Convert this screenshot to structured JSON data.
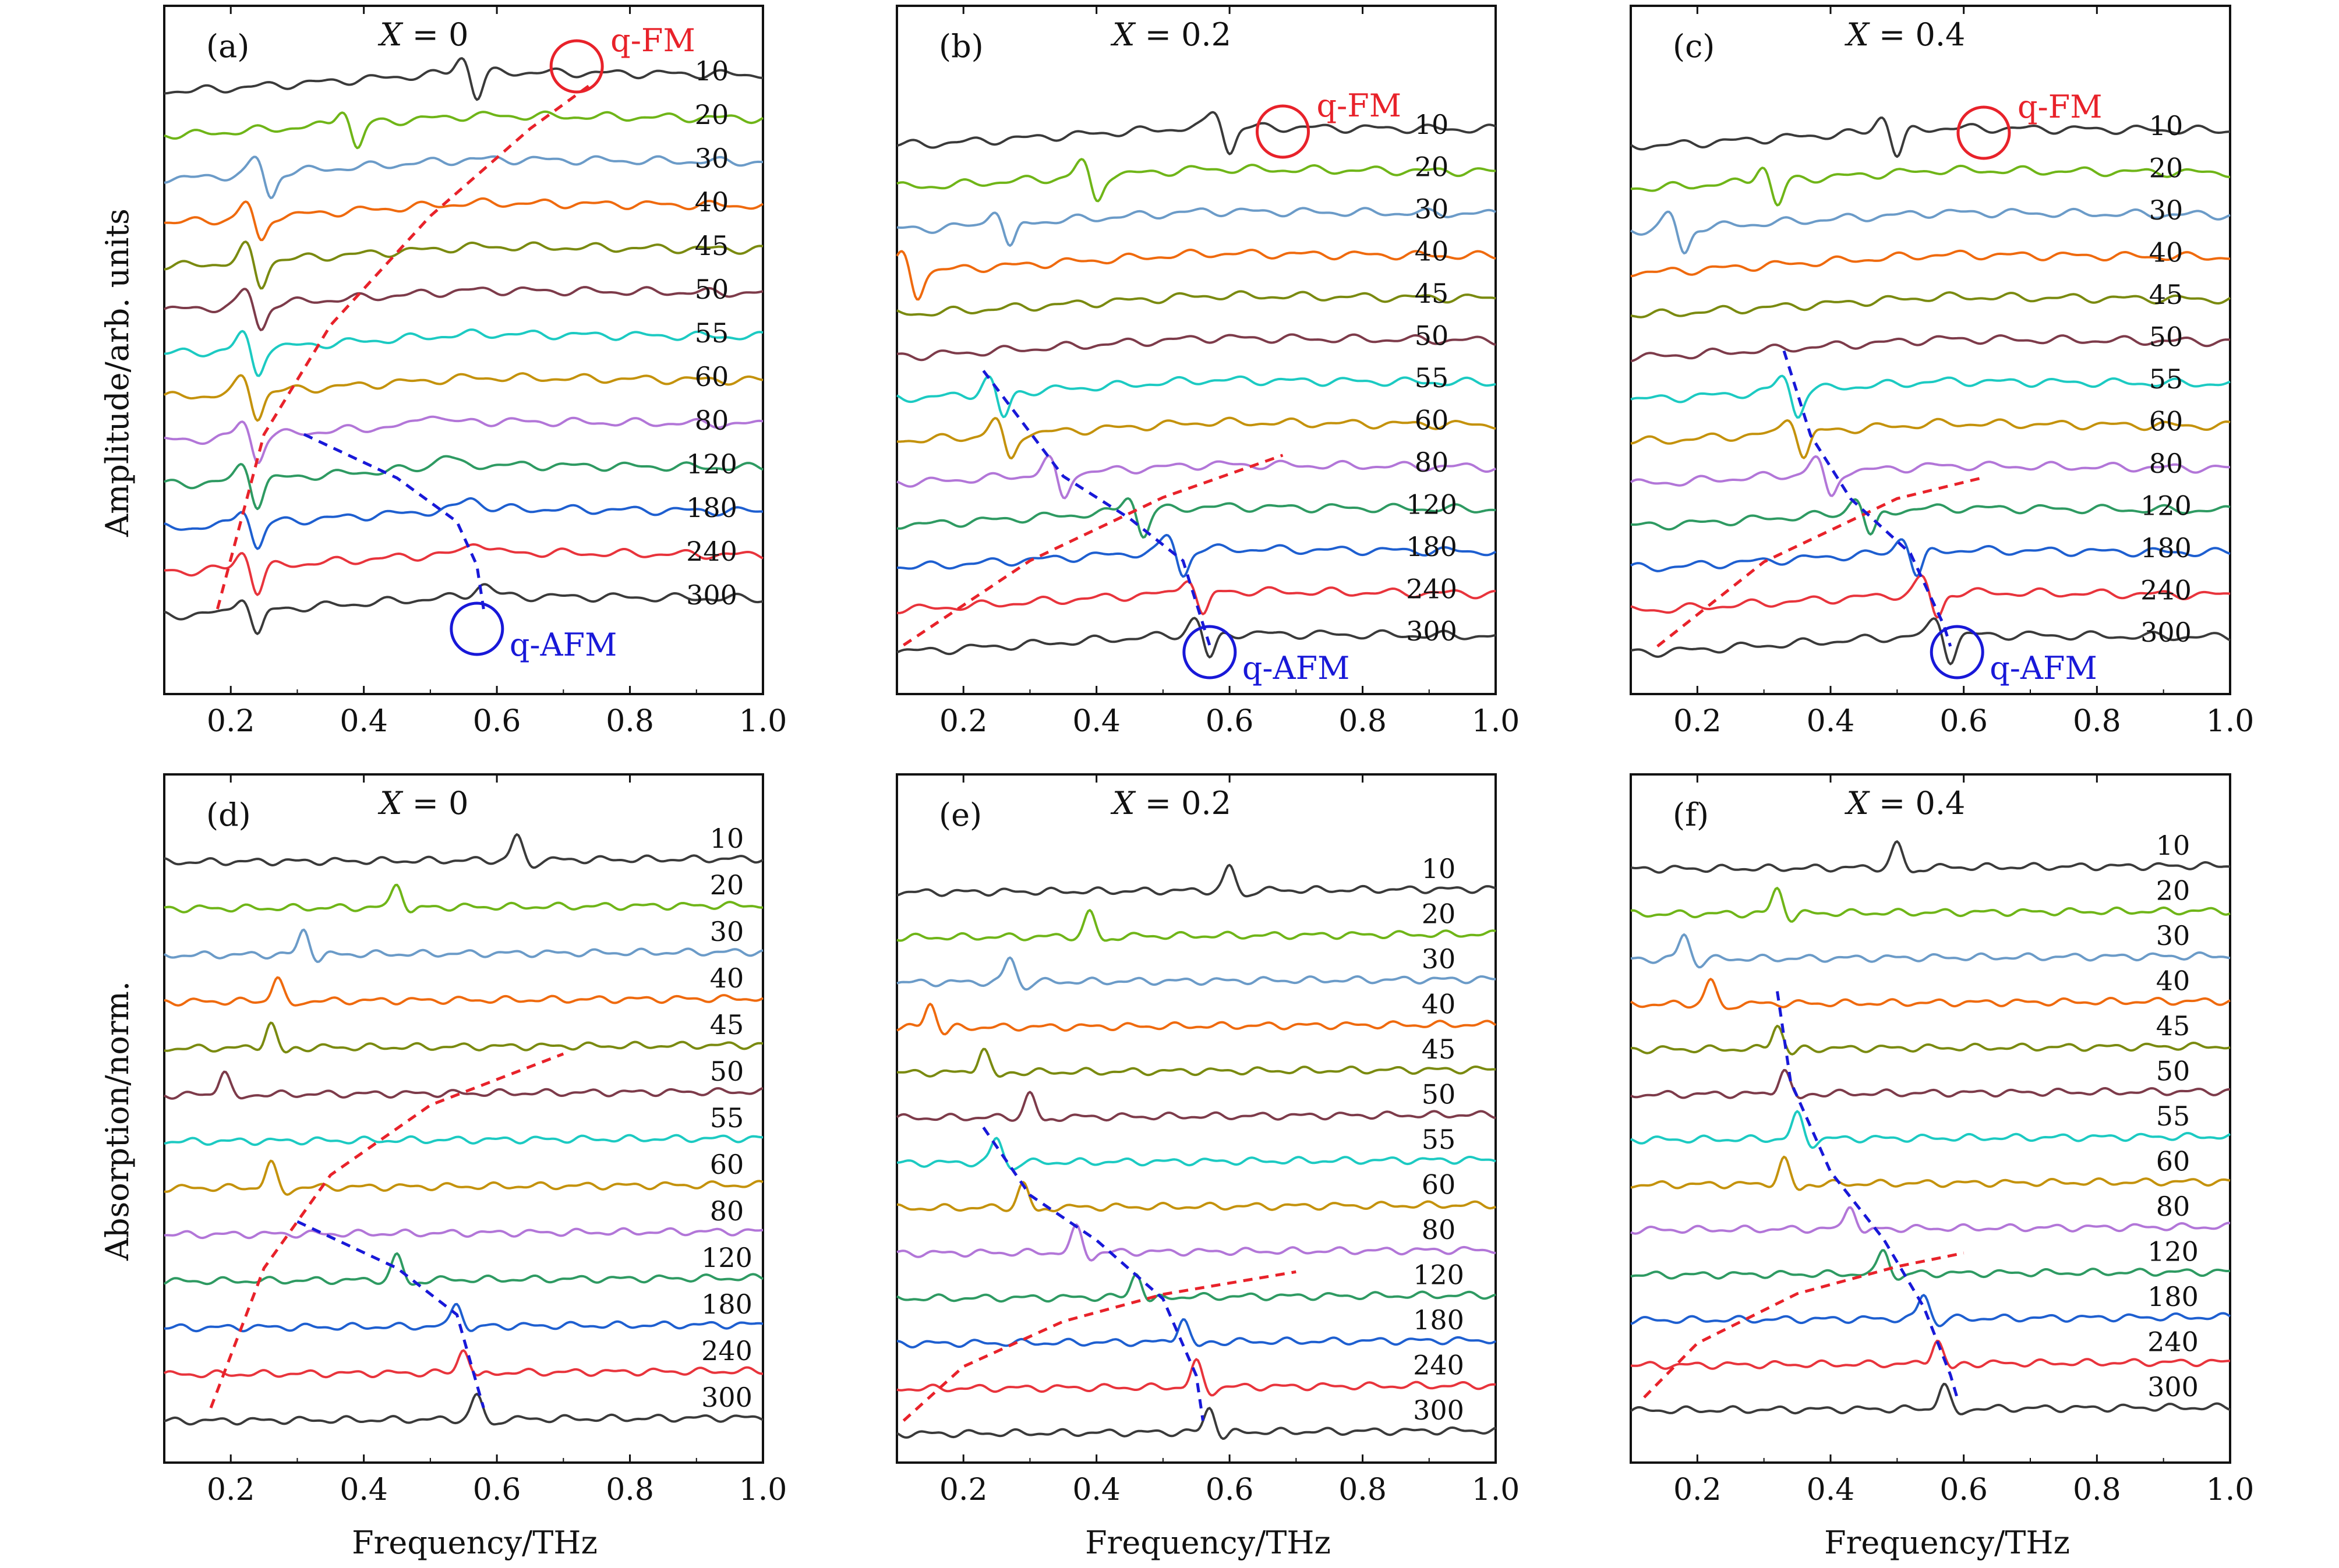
{
  "figure": {
    "ylabel_top": "Amplitude/arb. units",
    "ylabel_bottom": "Absorption/norm.",
    "xlabel": "Frequency/THz",
    "xticks": [
      0.2,
      0.4,
      0.6,
      0.8,
      1.0
    ],
    "xtick_labels": [
      "0.2",
      "0.4",
      "0.6",
      "0.8",
      "1.0"
    ],
    "xlim": [
      0.1,
      1.0
    ]
  },
  "chart_data": [
    {
      "panel": "(a)",
      "type": "line",
      "measurement": "amplitude",
      "x_label": "X = 0",
      "x_var": "X",
      "x_val": "0",
      "xlim": [
        0.1,
        1.0
      ],
      "xlabel": "",
      "ylabel": "Amplitude/arb. units",
      "temperatures": [
        "10",
        "20",
        "30",
        "40",
        "45",
        "50",
        "55",
        "60",
        "80",
        "120",
        "180",
        "240",
        "300"
      ],
      "dip_freq_thz": [
        0.57,
        0.39,
        0.26,
        0.245,
        0.245,
        0.245,
        0.24,
        0.24,
        0.24,
        0.24,
        0.24,
        0.24,
        0.24
      ],
      "afm_freq_thz": [
        null,
        null,
        null,
        null,
        null,
        null,
        null,
        null,
        0.5,
        0.52,
        0.56,
        0.57,
        0.58
      ],
      "fm_trend": {
        "label": "q-FM",
        "points": [
          [
            0.18,
            0
          ],
          [
            0.25,
            4
          ],
          [
            0.35,
            6.5
          ],
          [
            0.5,
            9
          ],
          [
            0.65,
            11
          ],
          [
            0.74,
            12
          ]
        ]
      },
      "afm_trend": {
        "label": "q-AFM",
        "points": [
          [
            0.31,
            4
          ],
          [
            0.45,
            3
          ],
          [
            0.54,
            2
          ],
          [
            0.57,
            1
          ],
          [
            0.58,
            0
          ]
        ]
      },
      "fm_circle": {
        "label": "q-FM",
        "x": 0.72
      },
      "afm_circle": {
        "label": "q-AFM",
        "x": 0.57
      }
    },
    {
      "panel": "(b)",
      "type": "line",
      "measurement": "amplitude",
      "x_label": "X = 0.2",
      "x_var": "X",
      "x_val": "0.2",
      "xlim": [
        0.1,
        1.0
      ],
      "xlabel": "",
      "ylabel": "",
      "temperatures": [
        "10",
        "20",
        "30",
        "40",
        "45",
        "50",
        "55",
        "60",
        "80",
        "120",
        "180",
        "240",
        "300"
      ],
      "dip_freq_thz": [
        0.6,
        0.4,
        0.27,
        0.13,
        null,
        null,
        0.26,
        0.27,
        0.35,
        0.47,
        0.53,
        0.56,
        0.57
      ],
      "fm_trend": {
        "label": "q-FM",
        "points": [
          [
            0.11,
            0
          ],
          [
            0.3,
            2
          ],
          [
            0.5,
            3.5
          ],
          [
            0.68,
            4.5
          ]
        ]
      },
      "afm_trend": {
        "label": "q-AFM",
        "points": [
          [
            0.23,
            6.5
          ],
          [
            0.35,
            4
          ],
          [
            0.45,
            3
          ],
          [
            0.53,
            2
          ],
          [
            0.57,
            0
          ]
        ]
      },
      "fm_circle": {
        "label": "q-FM",
        "x": 0.68
      },
      "afm_circle": {
        "label": "q-AFM",
        "x": 0.57
      }
    },
    {
      "panel": "(c)",
      "type": "line",
      "measurement": "amplitude",
      "x_label": "X = 0.4",
      "x_var": "X",
      "x_val": "0.4",
      "xlim": [
        0.1,
        1.0
      ],
      "xlabel": "",
      "ylabel": "",
      "temperatures": [
        "10",
        "20",
        "30",
        "40",
        "45",
        "50",
        "55",
        "60",
        "80",
        "120",
        "180",
        "240",
        "300"
      ],
      "dip_freq_thz": [
        0.5,
        0.32,
        0.18,
        null,
        null,
        null,
        0.35,
        0.36,
        0.4,
        0.46,
        0.53,
        0.56,
        0.58
      ],
      "fm_trend": {
        "label": "q-FM",
        "points": [
          [
            0.14,
            0
          ],
          [
            0.3,
            2
          ],
          [
            0.5,
            3.5
          ],
          [
            0.63,
            4
          ]
        ]
      },
      "afm_trend": {
        "label": "q-AFM",
        "points": [
          [
            0.33,
            7
          ],
          [
            0.37,
            5
          ],
          [
            0.43,
            3.5
          ],
          [
            0.52,
            2.2
          ],
          [
            0.57,
            0.5
          ],
          [
            0.58,
            0
          ]
        ]
      },
      "fm_circle": {
        "label": "q-FM",
        "x": 0.63
      },
      "afm_circle": {
        "label": "q-AFM",
        "x": 0.59
      }
    },
    {
      "panel": "(d)",
      "type": "line",
      "measurement": "absorption",
      "x_label": "X = 0",
      "x_var": "X",
      "x_val": "0",
      "xlim": [
        0.1,
        1.0
      ],
      "xlabel": "Frequency/THz",
      "ylabel": "Absorption/norm.",
      "temperatures": [
        "10",
        "20",
        "30",
        "40",
        "45",
        "50",
        "55",
        "60",
        "80",
        "120",
        "180",
        "240",
        "300"
      ],
      "peak_freq_thz": [
        0.63,
        0.45,
        0.31,
        0.27,
        0.26,
        0.19,
        null,
        0.26,
        null,
        0.45,
        0.54,
        0.55,
        0.57
      ],
      "fm_trend": {
        "label": "",
        "points": [
          [
            0.17,
            0
          ],
          [
            0.25,
            3
          ],
          [
            0.35,
            5
          ],
          [
            0.5,
            6.5
          ],
          [
            0.7,
            7.6
          ]
        ]
      },
      "afm_trend": {
        "label": "",
        "points": [
          [
            0.3,
            4
          ],
          [
            0.45,
            3
          ],
          [
            0.54,
            2
          ],
          [
            0.57,
            0.5
          ],
          [
            0.58,
            0
          ]
        ]
      }
    },
    {
      "panel": "(e)",
      "type": "line",
      "measurement": "absorption",
      "x_label": "X = 0.2",
      "x_var": "X",
      "x_val": "0.2",
      "xlim": [
        0.1,
        1.0
      ],
      "xlabel": "Frequency/THz",
      "ylabel": "",
      "temperatures": [
        "10",
        "20",
        "30",
        "40",
        "45",
        "50",
        "55",
        "60",
        "80",
        "120",
        "180",
        "240",
        "300"
      ],
      "peak_freq_thz": [
        0.6,
        0.39,
        0.27,
        0.15,
        0.23,
        0.3,
        0.25,
        0.29,
        0.37,
        0.46,
        0.53,
        0.55,
        0.57
      ],
      "fm_trend": {
        "label": "",
        "points": [
          [
            0.11,
            0
          ],
          [
            0.2,
            1.2
          ],
          [
            0.35,
            2.2
          ],
          [
            0.5,
            2.8
          ],
          [
            0.7,
            3.3
          ]
        ]
      },
      "afm_trend": {
        "label": "",
        "points": [
          [
            0.23,
            6.5
          ],
          [
            0.3,
            5
          ],
          [
            0.4,
            4
          ],
          [
            0.5,
            2.7
          ],
          [
            0.55,
            1
          ],
          [
            0.56,
            0
          ]
        ]
      }
    },
    {
      "panel": "(f)",
      "type": "line",
      "measurement": "absorption",
      "x_label": "X = 0.4",
      "x_var": "X",
      "x_val": "0.4",
      "xlim": [
        0.1,
        1.0
      ],
      "xlabel": "Frequency/THz",
      "ylabel": "",
      "temperatures": [
        "10",
        "20",
        "30",
        "40",
        "45",
        "50",
        "55",
        "60",
        "80",
        "120",
        "180",
        "240",
        "300"
      ],
      "peak_freq_thz": [
        0.5,
        0.32,
        0.18,
        0.22,
        0.32,
        0.33,
        0.35,
        0.33,
        0.43,
        0.48,
        0.54,
        0.56,
        0.57
      ],
      "fm_trend": {
        "label": "",
        "points": [
          [
            0.12,
            0
          ],
          [
            0.2,
            1.2
          ],
          [
            0.35,
            2.3
          ],
          [
            0.5,
            2.9
          ],
          [
            0.6,
            3.2
          ]
        ]
      },
      "afm_trend": {
        "label": "",
        "points": [
          [
            0.32,
            9
          ],
          [
            0.34,
            7
          ],
          [
            0.4,
            5
          ],
          [
            0.48,
            3.5
          ],
          [
            0.54,
            2
          ],
          [
            0.58,
            0.5
          ],
          [
            0.59,
            0
          ]
        ]
      }
    }
  ],
  "colors": {
    "series": [
      "#3a3a3a",
      "#6fb518",
      "#6b9bc8",
      "#ef6a0e",
      "#7a8a10",
      "#7d3b4a",
      "#1ccac2",
      "#c4920c",
      "#b276d8",
      "#2e9a62",
      "#1e5fd0",
      "#e8343c",
      "#3a3a3a"
    ],
    "fm_trend": "#e8222a",
    "afm_trend": "#1818d8",
    "axes": "#111111"
  }
}
